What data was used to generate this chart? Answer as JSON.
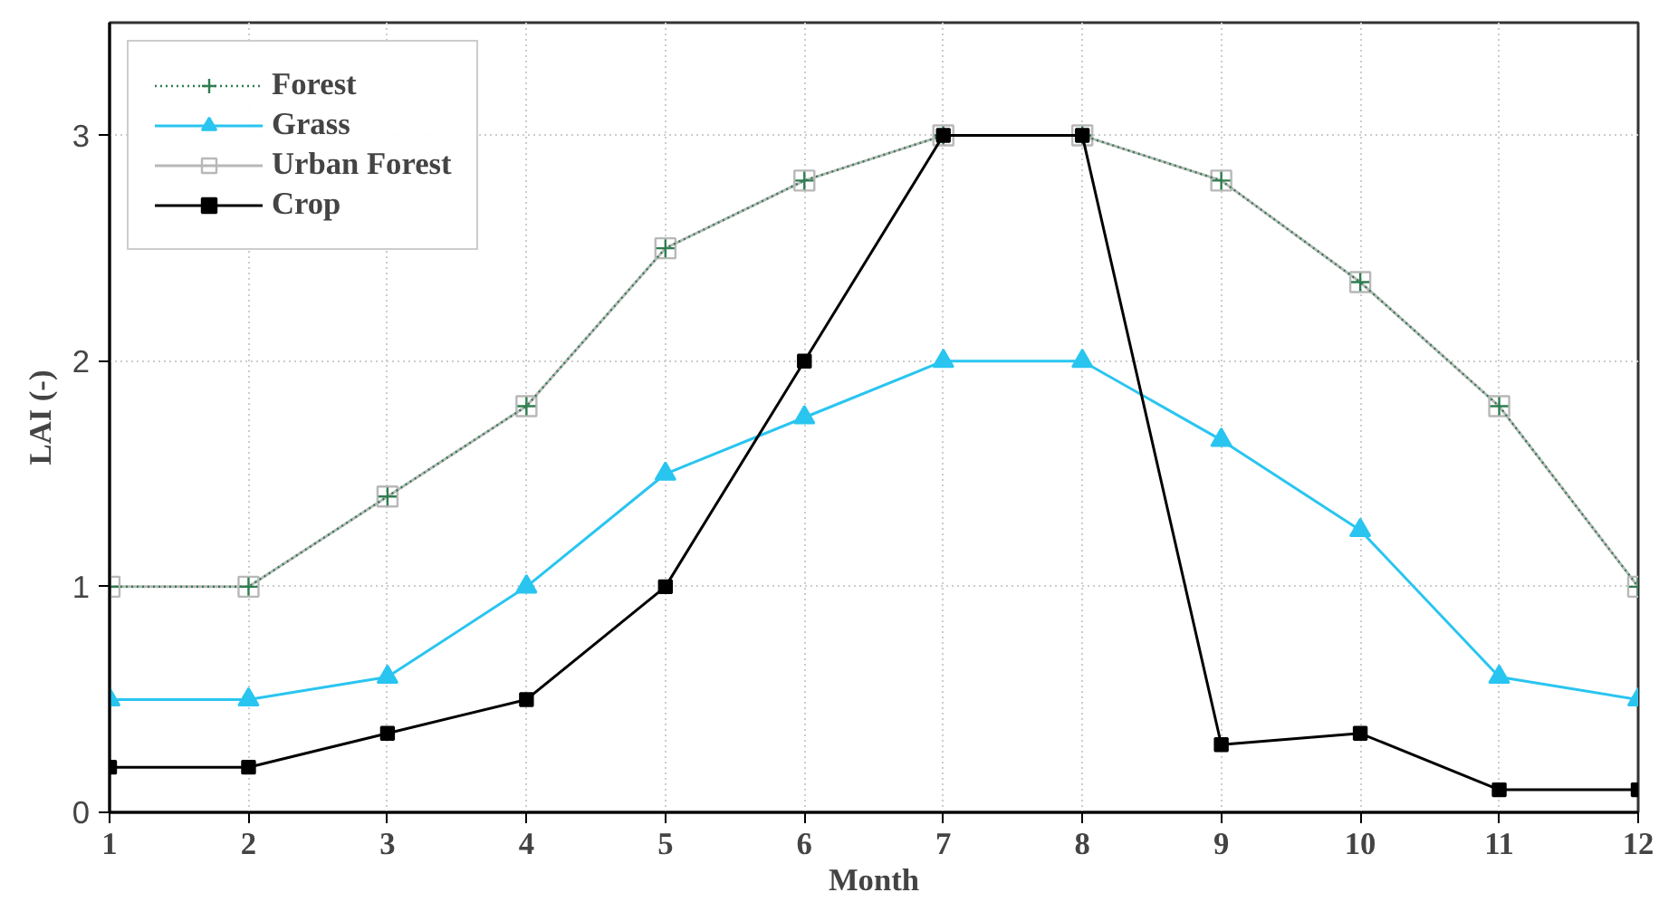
{
  "chart_data": {
    "type": "line",
    "xlabel": "Month",
    "ylabel": "LAI (-)",
    "x": [
      1,
      2,
      3,
      4,
      5,
      6,
      7,
      8,
      9,
      10,
      11,
      12
    ],
    "xlim": [
      1,
      12
    ],
    "xticks": [
      1,
      2,
      3,
      4,
      5,
      6,
      7,
      8,
      9,
      10,
      11,
      12
    ],
    "ylim": [
      0,
      3.5
    ],
    "yticks": [
      0,
      1,
      2,
      3
    ],
    "grid": true,
    "legend": "top left",
    "series": [
      {
        "name": "Forest",
        "color": "#2e7d4f",
        "marker": "cross",
        "line_style": "dotted",
        "values": [
          1,
          1,
          1.4,
          1.8,
          2.5,
          2.8,
          3,
          3,
          2.8,
          2.35,
          1.8,
          1
        ]
      },
      {
        "name": "Grass",
        "color": "#29c5f0",
        "marker": "triangle",
        "line_style": "solid",
        "values": [
          0.5,
          0.5,
          0.6,
          1,
          1.5,
          1.75,
          2,
          2,
          1.65,
          1.25,
          0.6,
          0.5
        ]
      },
      {
        "name": "Urban Forest",
        "color": "#b8b8b8",
        "marker": "square_open",
        "line_style": "solid",
        "values": [
          1,
          1,
          1.4,
          1.8,
          2.5,
          2.8,
          3,
          3,
          2.8,
          2.35,
          1.8,
          1
        ]
      },
      {
        "name": "Crop",
        "color": "#000000",
        "marker": "square",
        "line_style": "solid",
        "values": [
          0.2,
          0.2,
          0.35,
          0.5,
          1,
          2,
          3,
          3,
          0.3,
          0.35,
          0.1,
          0.1
        ]
      }
    ]
  }
}
